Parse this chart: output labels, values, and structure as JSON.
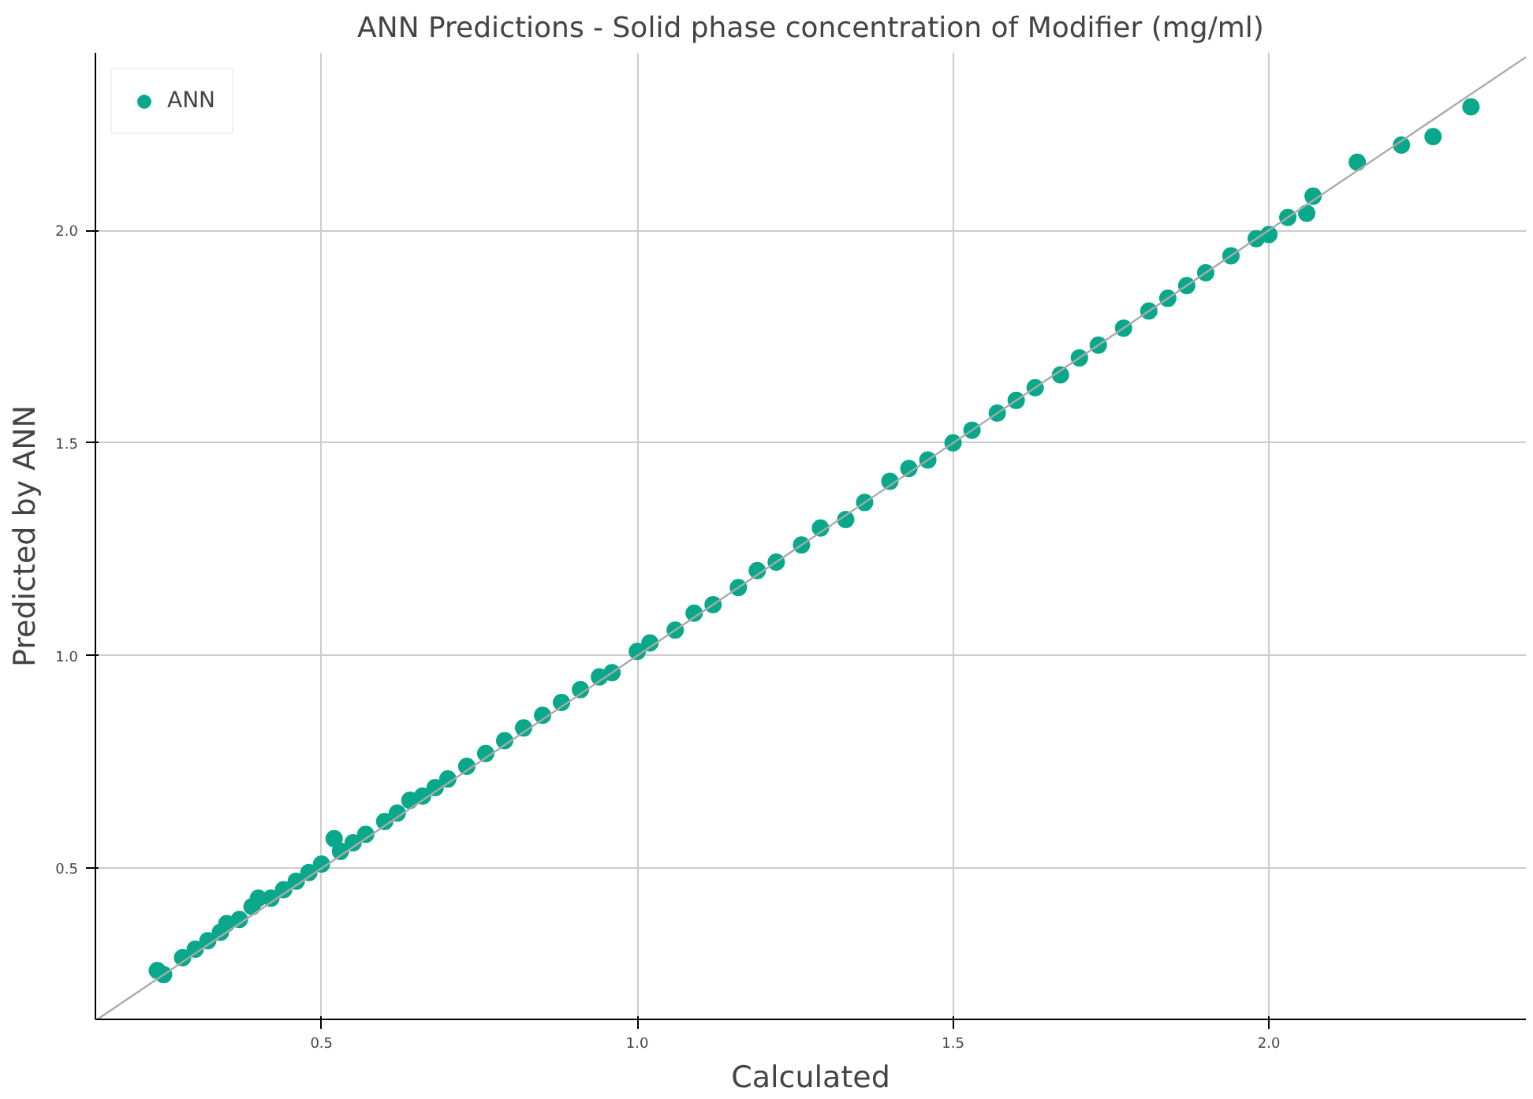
{
  "chart_data": {
    "type": "scatter",
    "title": "ANN Predictions - Solid phase concentration of Modifier (mg/ml)",
    "xlabel": "Calculated",
    "ylabel": "Predicted by ANN",
    "xlim": [
      0.142,
      2.407
    ],
    "ylim": [
      0.145,
      2.417
    ],
    "xticks": [
      0.5,
      {
        "value": 1,
        "label": "1.0"
      },
      1.5,
      {
        "value": 2,
        "label": "2.0"
      }
    ],
    "yticks": [
      0.5,
      {
        "value": 1,
        "label": "1.0"
      },
      1.5,
      {
        "value": 2,
        "label": "2.0"
      }
    ],
    "grid": true,
    "legend": "top left",
    "series": [
      {
        "name": "ANN",
        "color": "#0aa88a",
        "marker": "circle",
        "x": [
          0.24,
          0.25,
          0.28,
          0.3,
          0.32,
          0.34,
          0.35,
          0.37,
          0.39,
          0.4,
          0.42,
          0.44,
          0.46,
          0.48,
          0.5,
          0.52,
          0.53,
          0.55,
          0.57,
          0.6,
          0.62,
          0.64,
          0.66,
          0.68,
          0.7,
          0.73,
          0.76,
          0.79,
          0.82,
          0.85,
          0.88,
          0.91,
          0.94,
          0.96,
          1.0,
          1.02,
          1.06,
          1.09,
          1.12,
          1.16,
          1.19,
          1.22,
          1.26,
          1.29,
          1.33,
          1.36,
          1.4,
          1.43,
          1.46,
          1.5,
          1.53,
          1.57,
          1.6,
          1.63,
          1.67,
          1.7,
          1.73,
          1.77,
          1.81,
          1.84,
          1.87,
          1.9,
          1.94,
          1.98,
          2.0,
          2.03,
          2.06,
          2.07,
          2.14,
          2.21,
          2.26,
          2.32
        ],
        "values": [
          0.26,
          0.25,
          0.29,
          0.31,
          0.33,
          0.35,
          0.37,
          0.38,
          0.41,
          0.43,
          0.43,
          0.45,
          0.47,
          0.49,
          0.51,
          0.57,
          0.54,
          0.56,
          0.58,
          0.61,
          0.63,
          0.66,
          0.67,
          0.69,
          0.71,
          0.74,
          0.77,
          0.8,
          0.83,
          0.86,
          0.89,
          0.92,
          0.95,
          0.96,
          1.01,
          1.03,
          1.06,
          1.1,
          1.12,
          1.16,
          1.2,
          1.22,
          1.26,
          1.3,
          1.32,
          1.36,
          1.41,
          1.44,
          1.46,
          1.5,
          1.53,
          1.57,
          1.6,
          1.63,
          1.66,
          1.7,
          1.73,
          1.77,
          1.81,
          1.84,
          1.87,
          1.9,
          1.94,
          1.98,
          1.99,
          2.03,
          2.04,
          2.08,
          2.16,
          2.2,
          2.22,
          2.29
        ]
      },
      {
        "color": "#aaaaaa",
        "type": "line",
        "marker": "none",
        "x": [
          0.145,
          2.407
        ],
        "values": [
          0.145,
          2.407
        ]
      }
    ]
  }
}
